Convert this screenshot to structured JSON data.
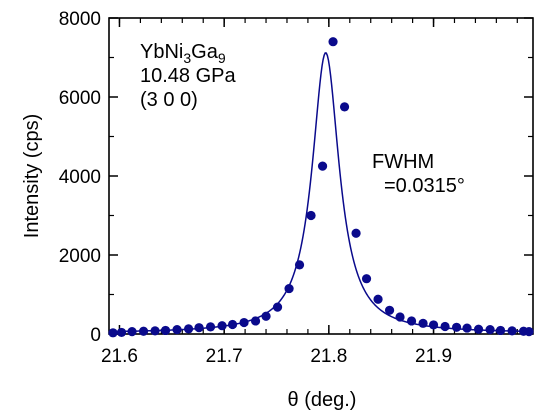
{
  "chart_data": {
    "type": "scatter",
    "xlabel": "θ (deg.)",
    "ylabel": "Intensity  (cps)",
    "xlim": [
      21.59,
      21.995
    ],
    "ylim": [
      0,
      8000
    ],
    "x_ticks": [
      "21.6",
      "21.7",
      "21.8",
      "21.9"
    ],
    "y_ticks": [
      "0",
      "2000",
      "4000",
      "6000",
      "8000"
    ],
    "grid": false,
    "annotations": {
      "sample_name": "YbNi3Ga9",
      "pressure": "10.48 GPa",
      "reflection": "(3 0 0)",
      "fwhm_label": "FWHM",
      "fwhm_value": "=0.0315°"
    },
    "marker_color": "#0a0a8c",
    "line_color": "#0a0a8c",
    "series": [
      {
        "kind": "points",
        "x": [
          21.591,
          21.602,
          21.612,
          21.623,
          21.634,
          21.644,
          21.655,
          21.666,
          21.676,
          21.687,
          21.698,
          21.708,
          21.719,
          21.73,
          21.74,
          21.751,
          21.762,
          21.772,
          21.783,
          21.794,
          21.804,
          21.815,
          21.826,
          21.836,
          21.847,
          21.858,
          21.868,
          21.879,
          21.89,
          21.9,
          21.911,
          21.922,
          21.932,
          21.943,
          21.954,
          21.964,
          21.975,
          21.986,
          21.996
        ],
        "y": [
          30,
          40,
          60,
          70,
          80,
          90,
          110,
          130,
          160,
          180,
          210,
          240,
          290,
          330,
          450,
          680,
          1150,
          1750,
          3000,
          4250,
          7400,
          5750,
          2550,
          1400,
          880,
          600,
          430,
          330,
          270,
          230,
          190,
          170,
          150,
          120,
          110,
          90,
          80,
          70,
          60
        ]
      },
      {
        "kind": "fit",
        "model": "lorentzian",
        "center": 21.797,
        "fwhm": 0.0315,
        "amplitude": 7100,
        "baseline": 20
      }
    ]
  }
}
